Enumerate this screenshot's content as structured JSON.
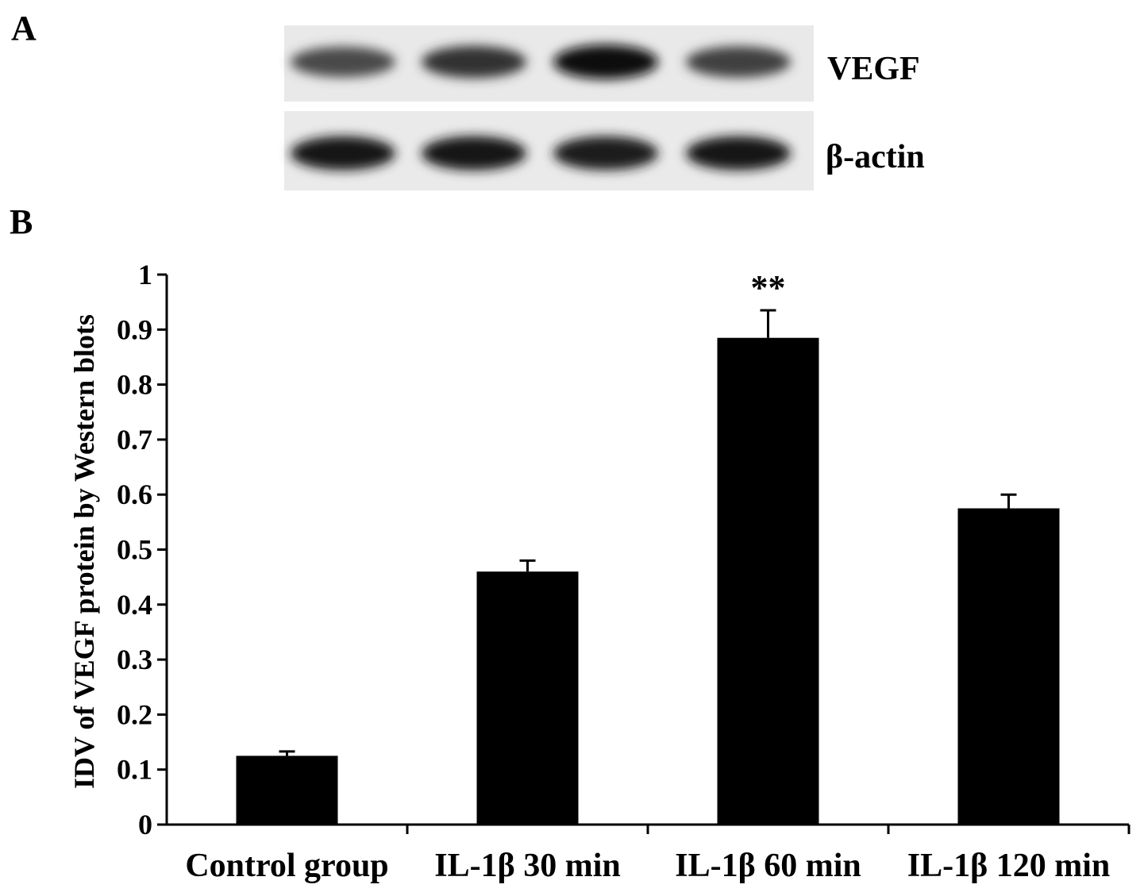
{
  "panel_a": {
    "letter": "A",
    "blots": [
      {
        "label": "VEGF",
        "intensities": [
          0.55,
          0.72,
          0.95,
          0.62
        ]
      },
      {
        "label": "β-actin",
        "intensities": [
          0.9,
          0.92,
          0.88,
          0.9
        ]
      }
    ]
  },
  "panel_b": {
    "letter": "B"
  },
  "chart_data": {
    "type": "bar",
    "categories": [
      "Control group",
      "IL-1β 30 min",
      "IL-1β 60 min",
      "IL-1β 120 min"
    ],
    "values": [
      0.125,
      0.46,
      0.885,
      0.575
    ],
    "errors": [
      0.008,
      0.02,
      0.05,
      0.025
    ],
    "annotations": [
      "",
      "",
      "**",
      ""
    ],
    "ylabel": "IDV of VEGF protein by Western blots",
    "xlabel": "",
    "ylim": [
      0,
      1
    ],
    "yticks": [
      0,
      0.1,
      0.2,
      0.3,
      0.4,
      0.5,
      0.6,
      0.7,
      0.8,
      0.9,
      1
    ],
    "ytick_labels": [
      "0",
      "0.1",
      "0.2",
      "0.3",
      "0.4",
      "0.5",
      "0.6",
      "0.7",
      "0.8",
      "0.9",
      "1"
    ],
    "grid": false,
    "bar_color": "#000000"
  }
}
